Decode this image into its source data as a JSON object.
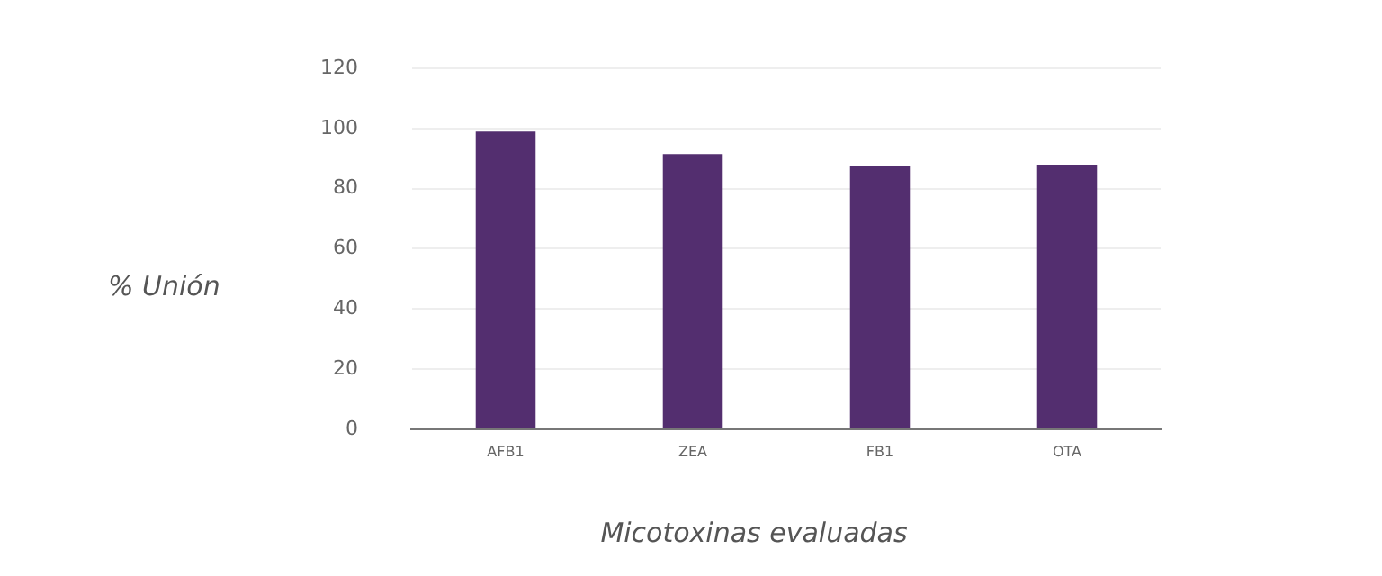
{
  "chart_data": {
    "type": "bar",
    "xlabel": "Micotoxinas evaluadas",
    "ylabel": "% Unión",
    "categories": [
      "AFB1",
      "ZEA",
      "FB1",
      "OTA"
    ],
    "values": [
      99,
      91.5,
      87.5,
      88
    ],
    "color": "#532e6f",
    "ylim": [
      0,
      120
    ],
    "yticks": [
      0,
      20,
      40,
      60,
      80,
      100,
      120
    ],
    "grid": "y",
    "legend": false
  }
}
